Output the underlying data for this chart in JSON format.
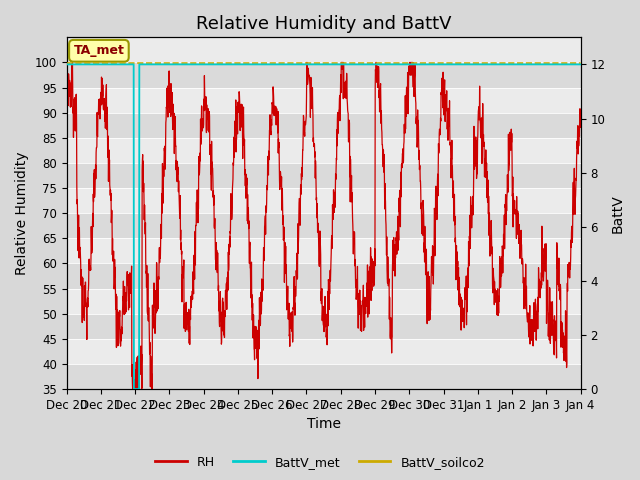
{
  "title": "Relative Humidity and BattV",
  "ylabel_left": "Relative Humidity",
  "ylabel_right": "BattV",
  "xlabel": "Time",
  "ylim_left": [
    35,
    105
  ],
  "ylim_right": [
    0,
    13
  ],
  "yticks_left": [
    35,
    40,
    45,
    50,
    55,
    60,
    65,
    70,
    75,
    80,
    85,
    90,
    95,
    100
  ],
  "yticks_right": [
    0,
    2,
    4,
    6,
    8,
    10,
    12
  ],
  "xtick_labels": [
    "Dec 20",
    "Dec 21",
    "Dec 22",
    "Dec 23",
    "Dec 24",
    "Dec 25",
    "Dec 26",
    "Dec 27",
    "Dec 28",
    "Dec 29",
    "Dec 30",
    "Dec 31",
    "Jan 1",
    "Jan 2",
    "Jan 3",
    "Jan 4"
  ],
  "rh_color": "#cc0000",
  "battv_met_color": "#00cccc",
  "battv_soilco2_color": "#ccaa00",
  "figure_bg": "#d8d8d8",
  "plot_bg_light": "#ebebeb",
  "plot_bg_dark": "#dadada",
  "annotation_text": "TA_met",
  "annotation_bg": "#ffffaa",
  "annotation_border": "#999900",
  "legend_entries": [
    "RH",
    "BattV_met",
    "BattV_soilco2"
  ],
  "battv_met_value": 12.0,
  "battv_soilco2_value": 12.05,
  "title_fontsize": 13,
  "label_fontsize": 10,
  "tick_fontsize": 8.5
}
